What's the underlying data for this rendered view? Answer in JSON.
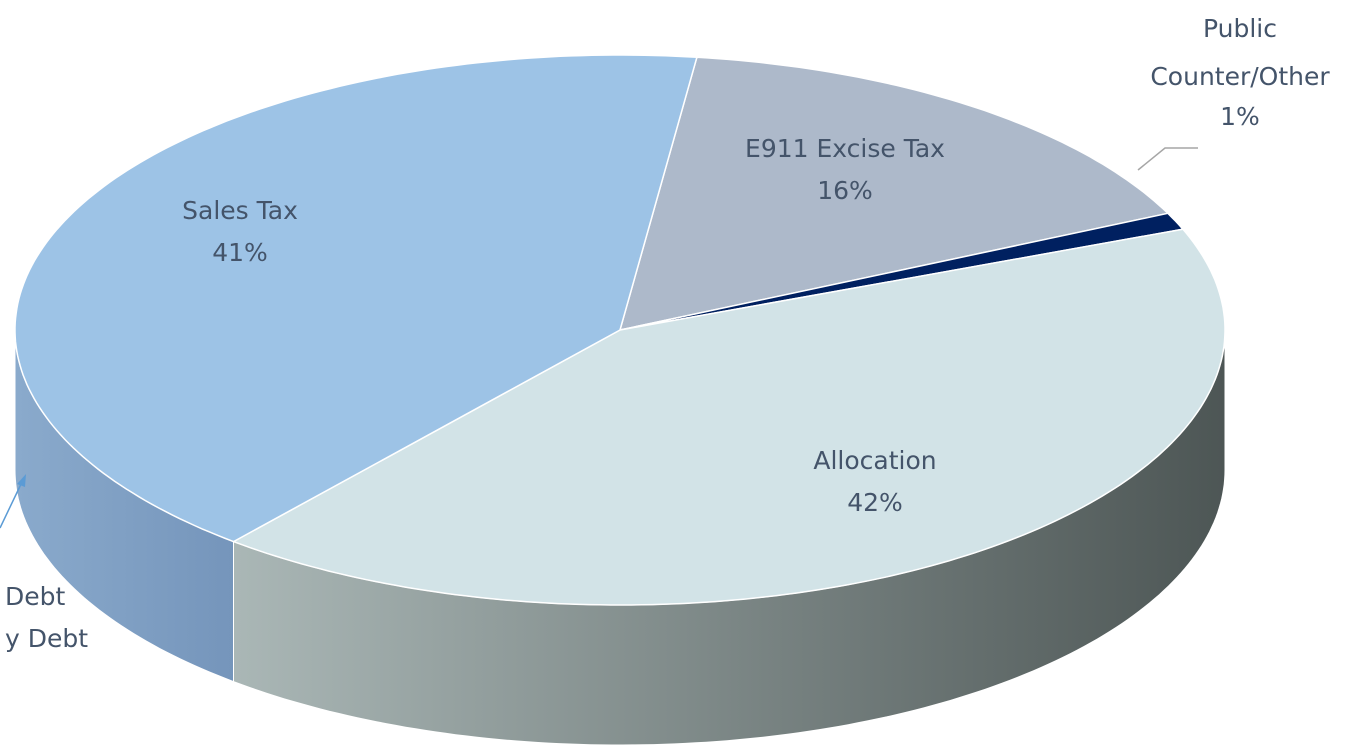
{
  "chart_data": {
    "type": "pie",
    "categories": [
      "E911 Excise Tax",
      "Public Counter/Other",
      "Allocation",
      "Sales Tax"
    ],
    "values": [
      16,
      1,
      42,
      41
    ],
    "value_labels": [
      "16%",
      "1%",
      "42%",
      "41%"
    ],
    "colors": [
      "#adb9ca",
      "#002060",
      "#d2e3e7",
      "#9dc3e6"
    ],
    "side_colors": [
      [
        "#8e98a6",
        "#6f7884"
      ],
      [
        "#001a4d",
        "#00143c"
      ],
      [
        "#aab7b6",
        "#4d5655"
      ],
      [
        "#8aaacc",
        "#7595bb"
      ]
    ],
    "callout": [
      "Debt",
      "y Debt"
    ]
  }
}
